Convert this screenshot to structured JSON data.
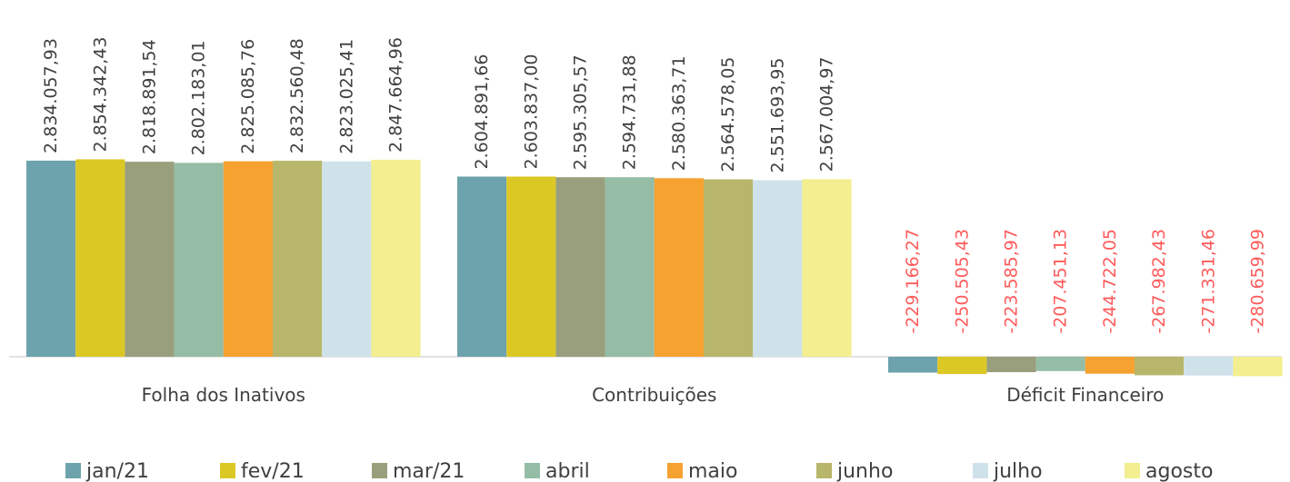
{
  "chart_data": {
    "type": "bar",
    "categories": [
      "Folha dos Inativos",
      "Contribuições",
      "Déficit Financeiro"
    ],
    "series": [
      {
        "name": "jan/21",
        "color": "#6da3ac",
        "values": [
          2834057.93,
          2604891.66,
          -229166.27
        ],
        "labels": [
          "2.834.057,93",
          "2.604.891,66",
          "-229.166,27"
        ]
      },
      {
        "name": "fev/21",
        "color": "#dcc825",
        "values": [
          2854342.43,
          2603837.0,
          -250505.43
        ],
        "labels": [
          "2.854.342,43",
          "2.603.837,00",
          "-250.505,43"
        ]
      },
      {
        "name": "mar/21",
        "color": "#999f7c",
        "values": [
          2818891.54,
          2595305.57,
          -223585.97
        ],
        "labels": [
          "2.818.891,54",
          "2.595.305,57",
          "-223.585,97"
        ]
      },
      {
        "name": "abril",
        "color": "#95bca4",
        "values": [
          2802183.01,
          2594731.88,
          -207451.13
        ],
        "labels": [
          "2.802.183,01",
          "2.594.731,88",
          "-207.451,13"
        ]
      },
      {
        "name": "maio",
        "color": "#f6a230",
        "values": [
          2825085.76,
          2580363.71,
          -244722.05
        ],
        "labels": [
          "2.825.085,76",
          "2.580.363,71",
          "-244.722,05"
        ]
      },
      {
        "name": "junho",
        "color": "#b7b66a",
        "values": [
          2832560.48,
          2564578.05,
          -267982.43
        ],
        "labels": [
          "2.832.560,48",
          "2.564.578,05",
          "-267.982,43"
        ]
      },
      {
        "name": "julho",
        "color": "#cfe2ea",
        "values": [
          2823025.41,
          2551693.95,
          -271331.46
        ],
        "labels": [
          "2.823.025,41",
          "2.551.693,95",
          "-271.331,46"
        ]
      },
      {
        "name": "agosto",
        "color": "#f3ee8f",
        "values": [
          2847664.96,
          2567004.97,
          -280659.99
        ],
        "labels": [
          "2.847.664,96",
          "2.567.004,97",
          "-280.659,99"
        ]
      }
    ],
    "label_colors": {
      "positive": "#404040",
      "negative": "#ff5b5b"
    },
    "legend_position": "bottom",
    "grid": false
  }
}
